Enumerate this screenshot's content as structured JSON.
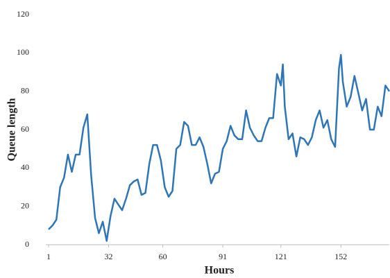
{
  "chart_data": {
    "type": "line",
    "x_label": "Hours",
    "y_label": "Queue length",
    "x": [
      1,
      3,
      5,
      7,
      9,
      11,
      13,
      15,
      17,
      19,
      21,
      23,
      25,
      27,
      29,
      31,
      33,
      35,
      37,
      39,
      41,
      43,
      45,
      47,
      49,
      51,
      53,
      55,
      57,
      59,
      61,
      63,
      65,
      67,
      69,
      71,
      73,
      75,
      77,
      79,
      81,
      83,
      85,
      87,
      89,
      91,
      93,
      95,
      97,
      99,
      101,
      103,
      105,
      107,
      109,
      111,
      113,
      115,
      117,
      119,
      121,
      122,
      123,
      125,
      127,
      129,
      131,
      133,
      135,
      137,
      139,
      141,
      143,
      145,
      147,
      149,
      151,
      152,
      153,
      155,
      157,
      159,
      161,
      163,
      165,
      167,
      169,
      171,
      173,
      175,
      177
    ],
    "series": [
      {
        "name": "Queue length",
        "color": "#2e75b6",
        "values": [
          8,
          10,
          13,
          30,
          35,
          47,
          38,
          47,
          47,
          61,
          68,
          36,
          14,
          6,
          12,
          2,
          15,
          24,
          21,
          18,
          24,
          31,
          33,
          34,
          26,
          27,
          42,
          52,
          52,
          44,
          30,
          25,
          28,
          50,
          52,
          64,
          62,
          52,
          52,
          56,
          51,
          42,
          32,
          37,
          38,
          50,
          54,
          62,
          57,
          55,
          55,
          70,
          61,
          57,
          54,
          54,
          61,
          66,
          66,
          89,
          83,
          94,
          72,
          55,
          58,
          46,
          56,
          55,
          52,
          56,
          65,
          70,
          61,
          65,
          55,
          51,
          92,
          99,
          85,
          72,
          77,
          88,
          79,
          70,
          76,
          60,
          60,
          72,
          67,
          83,
          80
        ]
      }
    ],
    "xlim": [
      1,
      177
    ],
    "xticks": [
      1,
      32,
      60,
      91,
      121,
      152
    ],
    "ylim": [
      0,
      120
    ],
    "yticks": [
      0,
      20,
      40,
      60,
      80,
      100,
      120
    ]
  }
}
